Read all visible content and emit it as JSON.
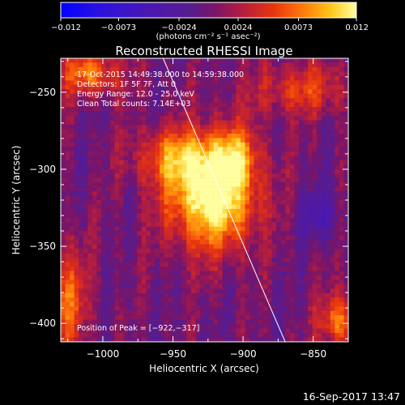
{
  "chart_data": {
    "type": "heatmap",
    "title": "Reconstructed RHESSI Image",
    "xlabel": "Heliocentric X (arcsec)",
    "ylabel": "Heliocentric Y (arcsec)",
    "xlim": [
      -1030,
      -825
    ],
    "ylim": [
      -412,
      -228
    ],
    "x_ticks": [
      {
        "value": -1000,
        "label": "−1000"
      },
      {
        "value": -950,
        "label": "−950"
      },
      {
        "value": -900,
        "label": "−900"
      },
      {
        "value": -850,
        "label": "−850"
      }
    ],
    "y_ticks": [
      {
        "value": -250,
        "label": "−250"
      },
      {
        "value": -300,
        "label": "−300"
      },
      {
        "value": -350,
        "label": "−350"
      },
      {
        "value": -400,
        "label": "−400"
      }
    ],
    "colorbar": {
      "range": [
        -0.012,
        0.012
      ],
      "tick_labels": [
        "−0.012",
        "−0.0073",
        "−0.0024",
        "0.0024",
        "0.0073",
        "0.012"
      ],
      "tick_values": [
        -0.012,
        -0.0073,
        -0.0024,
        0.0024,
        0.0073,
        0.012
      ],
      "unit_label": "(photons cm⁻² s⁻¹ asec⁻²)"
    },
    "annotations": [
      "17-Oct-2015 14:49:38.000 to 14:59:38.000",
      "Detectors: 1F 5F 7F, Att 0",
      "Energy Range: 12.0 - 25.0 keV",
      "Clean    Total counts: 7.14E+03"
    ],
    "peak": {
      "x": -922,
      "y": -317
    },
    "peak_label": "Position of Peak = [−922,−317]",
    "limb_line": [
      {
        "x": -957,
        "y": -228
      },
      {
        "x": -870,
        "y": -412
      }
    ],
    "blobs": [
      {
        "x": -922,
        "y": -317,
        "sx": 22,
        "sy": 24,
        "amp": 0.0135
      },
      {
        "x": -948,
        "y": -292,
        "sx": 22,
        "sy": 13,
        "amp": 0.006
      },
      {
        "x": -905,
        "y": -290,
        "sx": 12,
        "sy": 14,
        "amp": 0.005
      },
      {
        "x": -1010,
        "y": -238,
        "sx": 16,
        "sy": 10,
        "amp": 0.0075
      },
      {
        "x": -858,
        "y": -248,
        "sx": 26,
        "sy": 12,
        "amp": 0.005
      },
      {
        "x": -1025,
        "y": -385,
        "sx": 10,
        "sy": 25,
        "amp": 0.0065
      },
      {
        "x": -832,
        "y": -398,
        "sx": 10,
        "sy": 12,
        "amp": 0.0075
      },
      {
        "x": -845,
        "y": -330,
        "sx": 10,
        "sy": 12,
        "amp": -0.0042
      }
    ],
    "colormap": [
      {
        "v": 0.0,
        "c": "#0000ff"
      },
      {
        "v": 0.12,
        "c": "#2a10e0"
      },
      {
        "v": 0.3,
        "c": "#4a18b4"
      },
      {
        "v": 0.45,
        "c": "#5a1c8a"
      },
      {
        "v": 0.52,
        "c": "#7a1468"
      },
      {
        "v": 0.62,
        "c": "#b81e3c"
      },
      {
        "v": 0.72,
        "c": "#e8350f"
      },
      {
        "v": 0.82,
        "c": "#ff7a0c"
      },
      {
        "v": 0.91,
        "c": "#ffc417"
      },
      {
        "v": 1.0,
        "c": "#ffffa0"
      }
    ]
  },
  "footer": {
    "timestamp": "16-Sep-2017 13:47"
  }
}
